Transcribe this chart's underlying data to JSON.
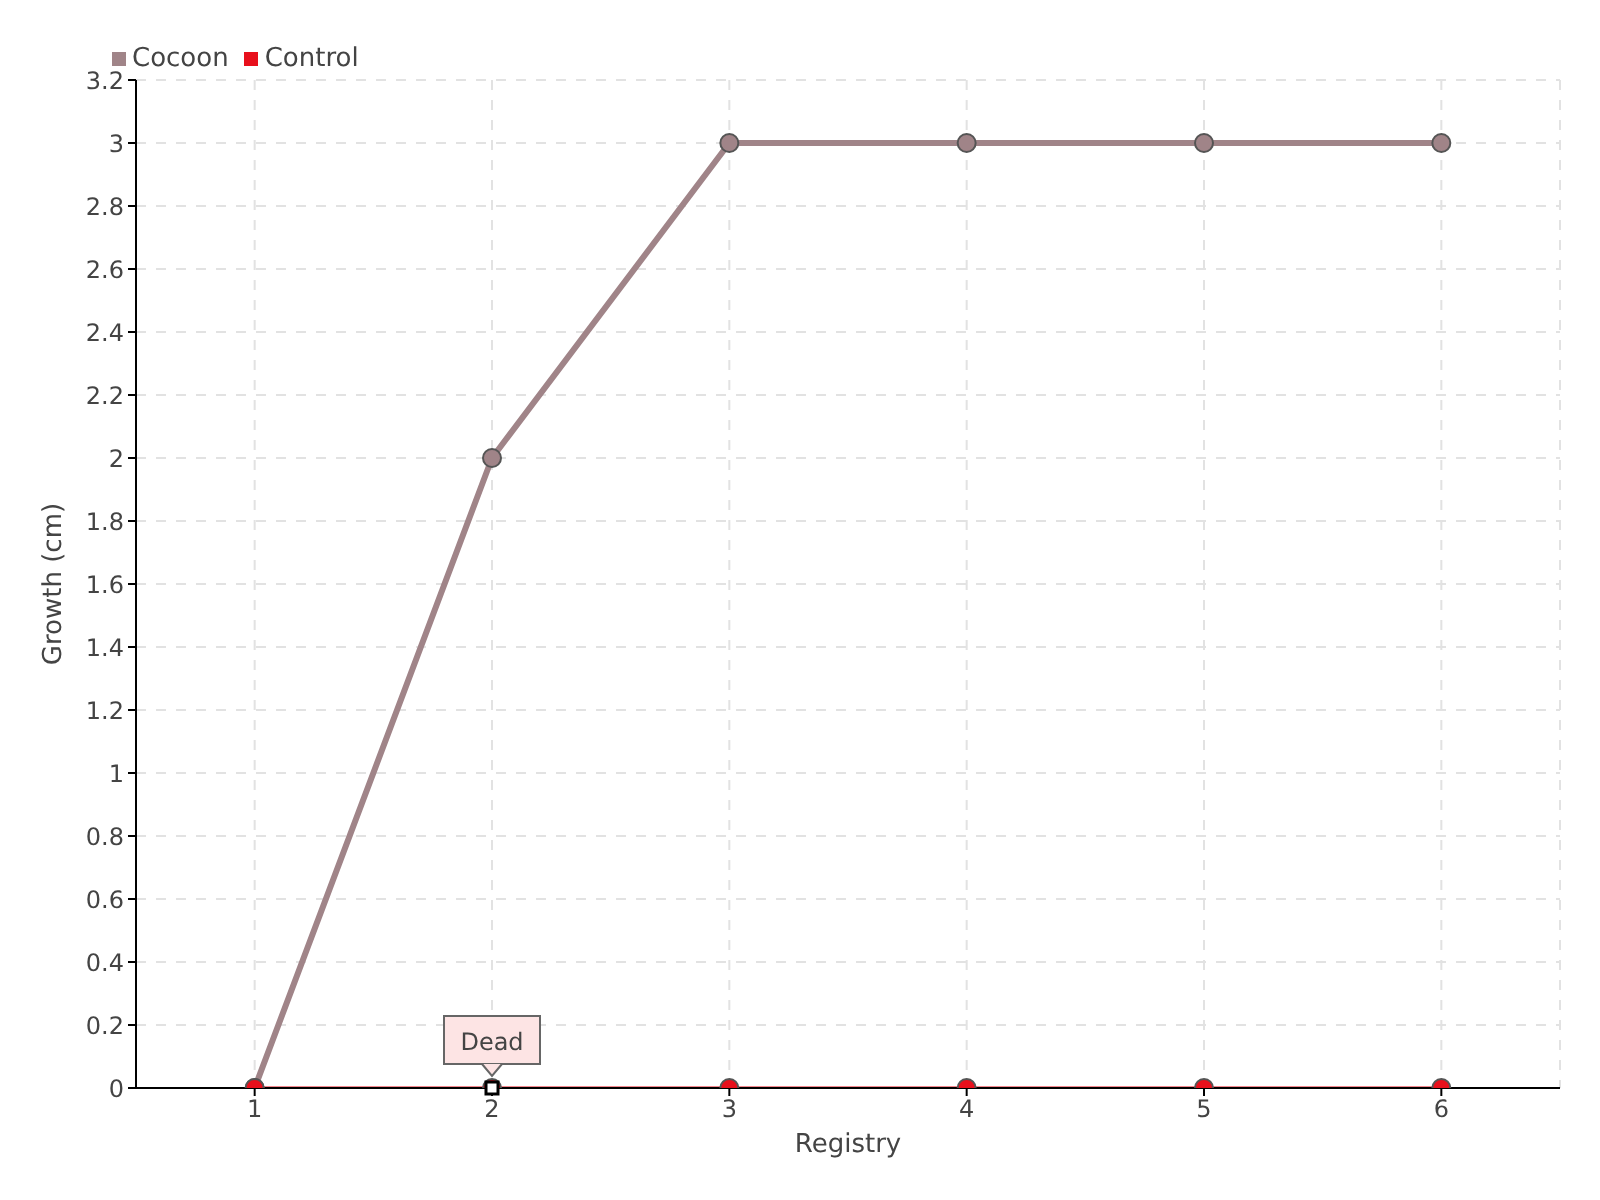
{
  "chart_data": {
    "type": "line",
    "xlabel": "Registry",
    "ylabel": "Growth (cm)",
    "x": [
      1,
      2,
      3,
      4,
      5,
      6
    ],
    "series": [
      {
        "name": "Cocoon",
        "color": "#a08488",
        "values": [
          0,
          2,
          3,
          3,
          3,
          3
        ]
      },
      {
        "name": "Control",
        "color": "#e8101c",
        "values": [
          0,
          0,
          0,
          0,
          0,
          0
        ]
      }
    ],
    "xlim": [
      0.5,
      6.5
    ],
    "xticks": [
      1,
      2,
      3,
      4,
      5,
      6
    ],
    "ylim": [
      0,
      3.2
    ],
    "yticks": [
      0,
      0.2,
      0.4,
      0.6,
      0.8,
      1,
      1.2,
      1.4,
      1.6,
      1.8,
      2,
      2.2,
      2.4,
      2.6,
      2.8,
      3,
      3.2
    ],
    "annotations": [
      {
        "text": "Dead",
        "x": 2,
        "y": 0
      }
    ],
    "grid": true,
    "legend": "top left",
    "marker": "circle",
    "line_style": "solid"
  }
}
